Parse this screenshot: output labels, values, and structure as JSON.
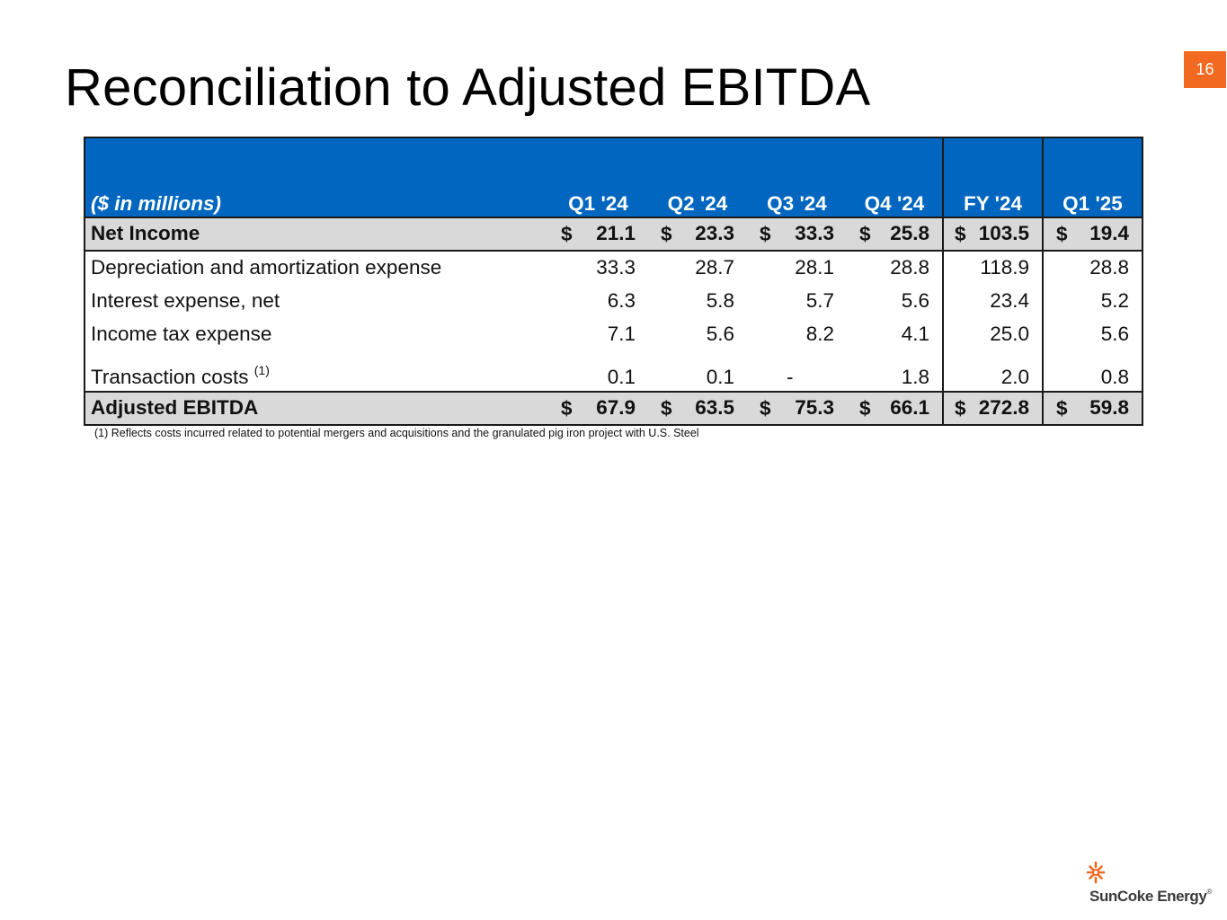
{
  "title": "Reconciliation to Adjusted EBITDA",
  "page_number": "16",
  "table": {
    "header": {
      "label": "($ in millions)",
      "columns": [
        "Q1 '24",
        "Q2 '24",
        "Q3 '24",
        "Q4 '24",
        "FY '24",
        "Q1 '25"
      ]
    },
    "currency_symbol": "$",
    "rows": [
      {
        "label": "Net Income",
        "values": [
          "21.1",
          "23.3",
          "33.3",
          "25.8",
          "103.5",
          "19.4"
        ]
      },
      {
        "label": "Depreciation and amortization expense",
        "values": [
          "33.3",
          "28.7",
          "28.1",
          "28.8",
          "118.9",
          "28.8"
        ]
      },
      {
        "label": "Interest expense, net",
        "values": [
          "6.3",
          "5.8",
          "5.7",
          "5.6",
          "23.4",
          "5.2"
        ]
      },
      {
        "label": "Income tax expense",
        "values": [
          "7.1",
          "5.6",
          "8.2",
          "4.1",
          "25.0",
          "5.6"
        ]
      },
      {
        "label": "Transaction costs",
        "superscript": "(1)",
        "values": [
          "0.1",
          "0.1",
          "-",
          "1.8",
          "2.0",
          "0.8"
        ]
      },
      {
        "label": "Adjusted EBITDA",
        "values": [
          "67.9",
          "63.5",
          "75.3",
          "66.1",
          "272.8",
          "59.8"
        ]
      }
    ]
  },
  "footnote": "(1)  Reflects costs incurred related to potential mergers and acquisitions and the granulated pig iron project with U.S. Steel",
  "logo": {
    "text": "SunCoke Energy",
    "registered": "®",
    "color": "#f26a21"
  },
  "colors": {
    "header_bg": "#0066bf",
    "accent": "#f26a21",
    "highlight_row": "#d9d9d9"
  }
}
